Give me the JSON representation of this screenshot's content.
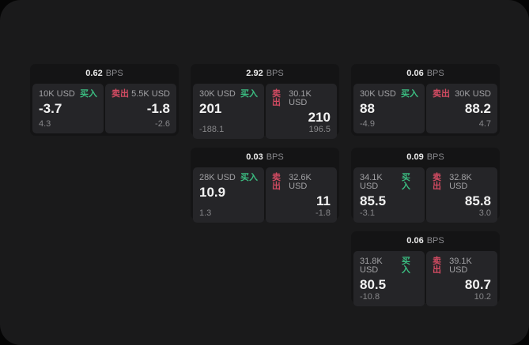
{
  "page": {
    "outer_bg": "#050505",
    "surface_bg": "#1a1a1b"
  },
  "colors": {
    "buy_green": "#3bbd81",
    "sell_red": "#d24b62",
    "card_bg": "#141415",
    "panel_bg": "#252528"
  },
  "labels": {
    "buy": "买入",
    "sell": "卖出",
    "bps_unit": "BPS"
  },
  "cards": [
    {
      "row": 1,
      "col": 1,
      "bps": "0.62",
      "buy": {
        "size": "10K USD",
        "price": "-3.7",
        "delta": "4.3"
      },
      "sell": {
        "size": "5.5K USD",
        "price": "-1.8",
        "delta": "-2.6"
      }
    },
    {
      "row": 1,
      "col": 2,
      "bps": "2.92",
      "buy": {
        "size": "30K USD",
        "price": "201",
        "delta": "-188.1"
      },
      "sell": {
        "size": "30.1K USD",
        "price": "210",
        "delta": "196.5"
      }
    },
    {
      "row": 1,
      "col": 3,
      "bps": "0.06",
      "buy": {
        "size": "30K USD",
        "price": "88",
        "delta": "-4.9"
      },
      "sell": {
        "size": "30K USD",
        "price": "88.2",
        "delta": "4.7"
      }
    },
    {
      "row": 2,
      "col": 2,
      "bps": "0.03",
      "buy": {
        "size": "28K USD",
        "price": "10.9",
        "delta": "1.3"
      },
      "sell": {
        "size": "32.6K USD",
        "price": "11",
        "delta": "-1.8"
      }
    },
    {
      "row": 2,
      "col": 3,
      "bps": "0.09",
      "buy": {
        "size": "34.1K USD",
        "price": "85.5",
        "delta": "-3.1"
      },
      "sell": {
        "size": "32.8K USD",
        "price": "85.8",
        "delta": "3.0"
      }
    },
    {
      "row": 3,
      "col": 3,
      "bps": "0.06",
      "buy": {
        "size": "31.8K USD",
        "price": "80.5",
        "delta": "-10.8"
      },
      "sell": {
        "size": "39.1K USD",
        "price": "80.7",
        "delta": "10.2"
      }
    }
  ]
}
